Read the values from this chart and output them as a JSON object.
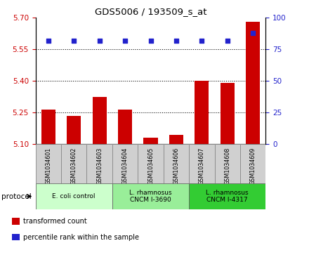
{
  "title": "GDS5006 / 193509_s_at",
  "samples": [
    "GSM1034601",
    "GSM1034602",
    "GSM1034603",
    "GSM1034604",
    "GSM1034605",
    "GSM1034606",
    "GSM1034607",
    "GSM1034608",
    "GSM1034609"
  ],
  "transformed_count": [
    5.265,
    5.235,
    5.325,
    5.265,
    5.13,
    5.145,
    5.4,
    5.39,
    5.68
  ],
  "percentile_rank": [
    82,
    82,
    82,
    82,
    82,
    82,
    82,
    82,
    88
  ],
  "ylim_left": [
    5.1,
    5.7
  ],
  "ylim_right": [
    0,
    100
  ],
  "yticks_left": [
    5.1,
    5.25,
    5.4,
    5.55,
    5.7
  ],
  "yticks_right": [
    0,
    25,
    50,
    75,
    100
  ],
  "bar_color": "#cc0000",
  "dot_color": "#2222cc",
  "protocol_groups": [
    {
      "label": "E. coli control",
      "start": 0,
      "end": 3,
      "color": "#ccffcc"
    },
    {
      "label": "L. rhamnosus\nCNCM I-3690",
      "start": 3,
      "end": 6,
      "color": "#99ee99"
    },
    {
      "label": "L. rhamnosus\nCNCM I-4317",
      "start": 6,
      "end": 9,
      "color": "#33cc33"
    }
  ],
  "legend_items": [
    {
      "label": "transformed count",
      "color": "#cc0000"
    },
    {
      "label": "percentile rank within the sample",
      "color": "#2222cc"
    }
  ],
  "protocol_label": "protocol",
  "tick_label_color_left": "#cc0000",
  "tick_label_color_right": "#2222cc",
  "sample_box_color": "#d0d0d0",
  "dotted_line_values": [
    5.25,
    5.4,
    5.55
  ],
  "bg_color": "#ffffff"
}
